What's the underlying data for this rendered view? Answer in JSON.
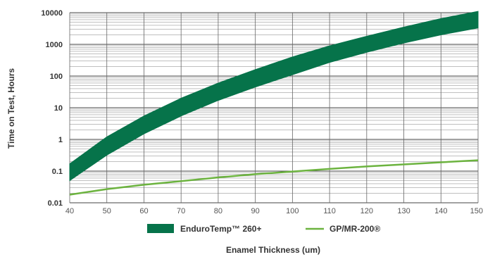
{
  "chart_data": {
    "type": "line",
    "xlabel": "Enamel Thickness (um)",
    "ylabel": "Time on Test, Hours",
    "xlim": [
      40,
      150
    ],
    "ylim": [
      0.01,
      10000
    ],
    "y_scale": "log",
    "grid": true,
    "legend_placement": "bottom-center",
    "x_ticks": [
      "40",
      "50",
      "60",
      "70",
      "80",
      "90",
      "100",
      "110",
      "120",
      "130",
      "140",
      "150"
    ],
    "y_ticks": [
      "10000",
      "1000",
      "100",
      "10",
      "1",
      "0.1",
      "0.01"
    ],
    "series": [
      {
        "name": "EnduroTemp™ 260+",
        "type": "band",
        "color": "#06734a",
        "x": [
          40,
          50,
          60,
          70,
          80,
          90,
          100,
          110,
          120,
          130,
          140,
          150
        ],
        "upper": [
          0.17,
          1.2,
          5.5,
          20,
          60,
          160,
          400,
          900,
          1800,
          3500,
          6500,
          11000
        ],
        "lower": [
          0.05,
          0.32,
          1.5,
          5.5,
          17,
          45,
          110,
          270,
          560,
          1100,
          2000,
          3300
        ]
      },
      {
        "name": "GP/MR-200®",
        "type": "line",
        "color": "#6cb33f",
        "x": [
          40,
          50,
          60,
          70,
          80,
          90,
          100,
          110,
          120,
          130,
          140,
          150
        ],
        "values": [
          0.018,
          0.027,
          0.037,
          0.048,
          0.063,
          0.08,
          0.097,
          0.117,
          0.14,
          0.163,
          0.19,
          0.22
        ]
      }
    ]
  }
}
